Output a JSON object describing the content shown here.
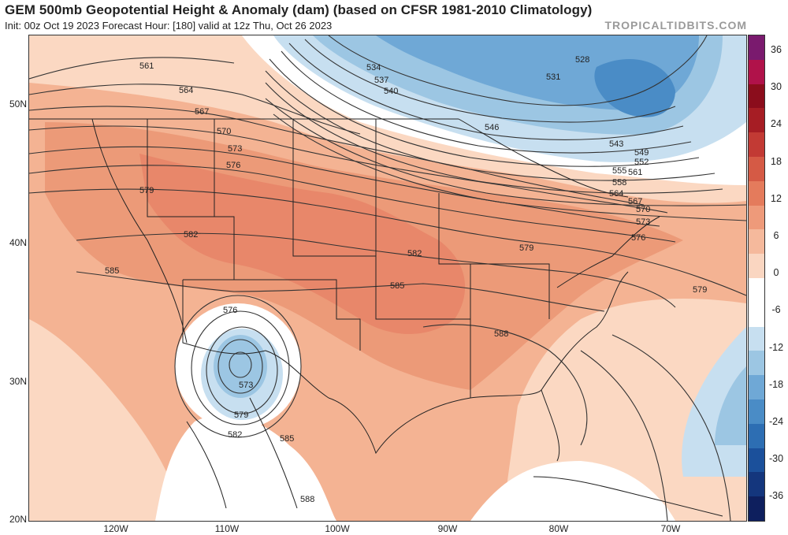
{
  "header": {
    "title": "GEM 500mb Geopotential Height & Anomaly (dam) (based on CFSR 1981-2010 Climatology)",
    "subtitle": "Init: 00z Oct 19 2023   Forecast Hour: [180]   valid at 12z Thu, Oct 26 2023",
    "brand": "TROPICALTIDBITS.COM"
  },
  "axes": {
    "lat_labels": [
      "50N",
      "40N",
      "30N",
      "20N"
    ],
    "lon_labels": [
      "120W",
      "110W",
      "100W",
      "90W",
      "80W",
      "70W"
    ]
  },
  "colorbar": {
    "labels": [
      "36",
      "30",
      "24",
      "18",
      "12",
      "6",
      "0",
      "-6",
      "-12",
      "-18",
      "-24",
      "-30",
      "-36"
    ],
    "colors": [
      "#7a1a6e",
      "#b0124a",
      "#8b0d1c",
      "#a61d24",
      "#c23a34",
      "#d55a45",
      "#e47b5c",
      "#ee9a7a",
      "#f5b99c",
      "#fad6c1",
      "#ffffff",
      "#ffffff",
      "#c7dff0",
      "#9cc6e3",
      "#6fa8d6",
      "#4a8cc6",
      "#2d6eb3",
      "#1b509b",
      "#14367d",
      "#0e1f5e"
    ]
  },
  "contours": {
    "labels": [
      "561",
      "564",
      "567",
      "570",
      "573",
      "576",
      "579",
      "582",
      "585",
      "588",
      "534",
      "537",
      "540",
      "546",
      "531",
      "528",
      "543",
      "549",
      "552",
      "555",
      "558",
      "561",
      "564",
      "567",
      "570",
      "573",
      "576",
      "579",
      "582",
      "585",
      "576",
      "573",
      "579",
      "582",
      "585",
      "588",
      "579"
    ]
  }
}
